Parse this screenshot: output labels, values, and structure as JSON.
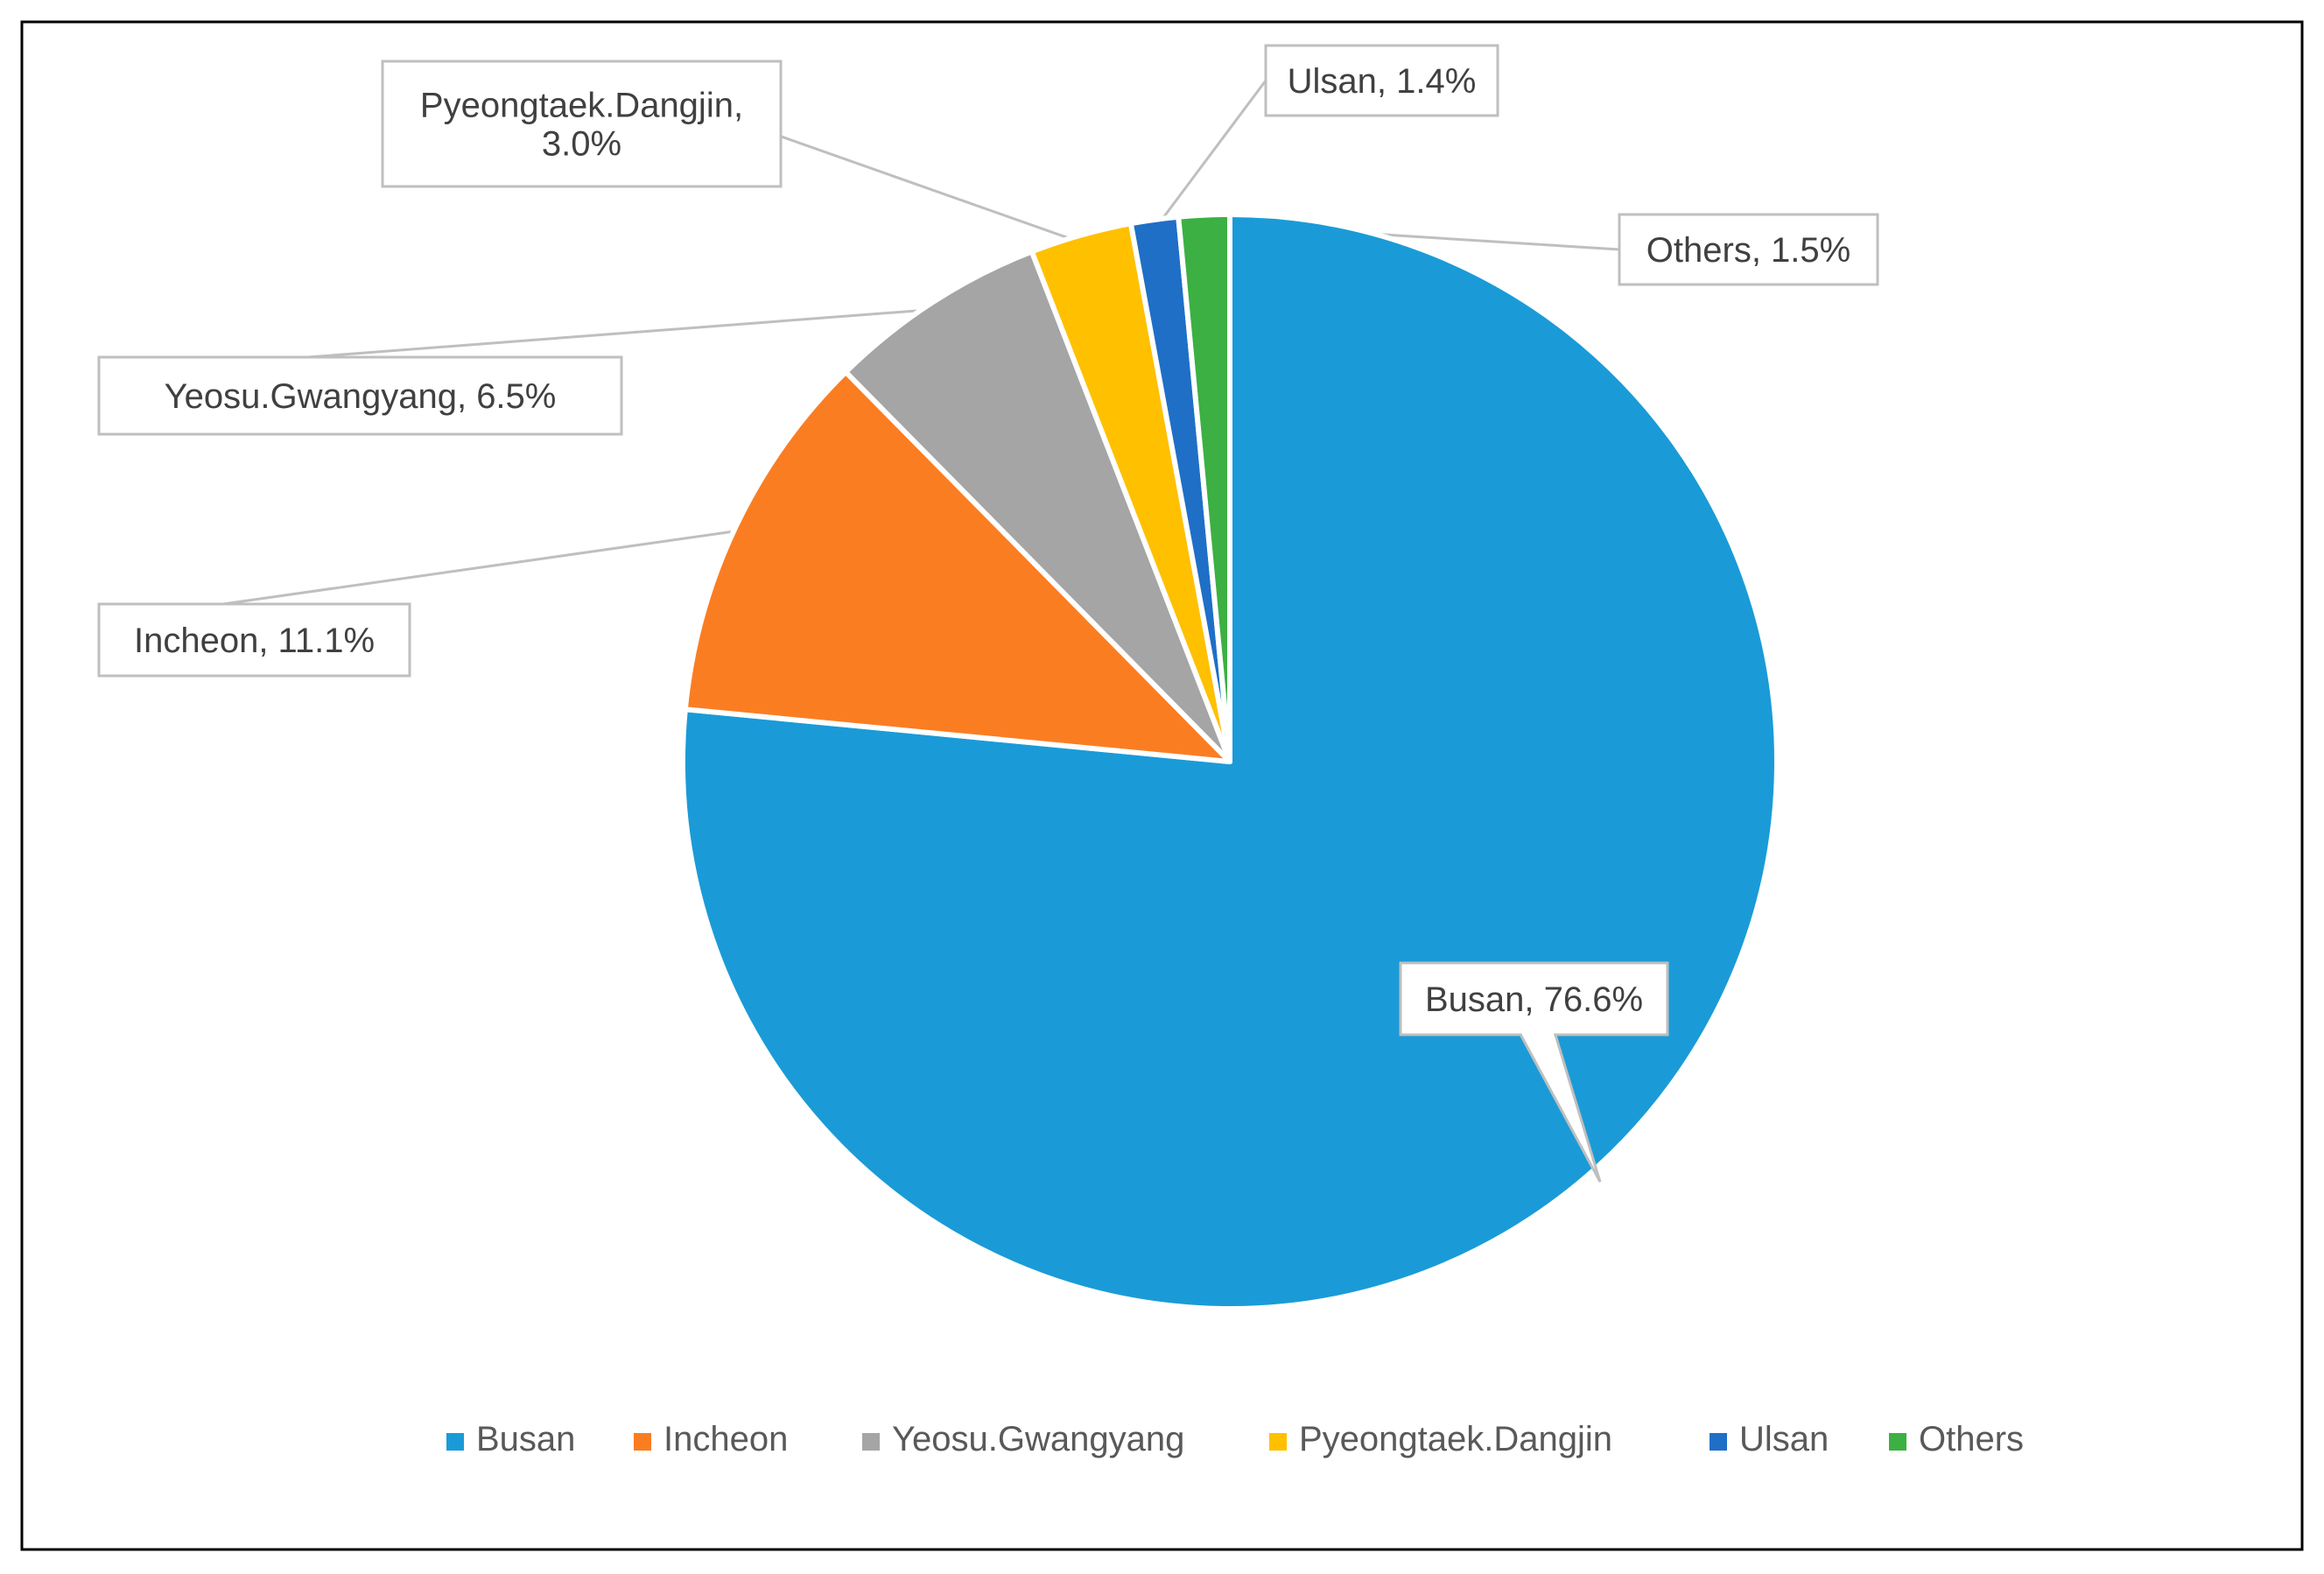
{
  "chart_data": {
    "type": "pie",
    "title": "",
    "unit": "%",
    "categories": [
      "Busan",
      "Incheon",
      "Yeosu.Gwangyang",
      "Pyeongtaek.Dangjin",
      "Ulsan",
      "Others"
    ],
    "values": [
      76.6,
      11.1,
      6.5,
      3.0,
      1.4,
      1.5
    ],
    "colors": [
      "#1A9BD7",
      "#FB7D22",
      "#A5A5A5",
      "#FFC000",
      "#1F6FC6",
      "#3CB043"
    ],
    "data_labels": [
      "Busan, 76.6%",
      "Incheon, 11.1%",
      "Yeosu.Gwangyang, 6.5%",
      [
        "Pyeongtaek.Dangjin,",
        "3.0%"
      ],
      "Ulsan, 1.4%",
      "Others, 1.5%"
    ],
    "start_angle": "12 o'clock",
    "direction": "clockwise",
    "legend": {
      "position": "bottom",
      "entries": [
        "Busan",
        "Incheon",
        "Yeosu.Gwangyang",
        "Pyeongtaek.Dangjin",
        "Ulsan",
        "Others"
      ]
    }
  }
}
